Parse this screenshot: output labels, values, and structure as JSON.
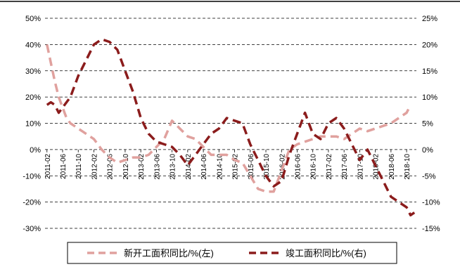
{
  "chart_data": {
    "type": "line",
    "title": "",
    "x": [
      "2011-02",
      "2011-06",
      "2011-10",
      "2012-02",
      "2012-06",
      "2012-10",
      "2013-02",
      "2013-06",
      "2013-10",
      "2014-02",
      "2014-06",
      "2014-10",
      "2015-02",
      "2015-06",
      "2015-10",
      "2016-02",
      "2016-06",
      "2016-10",
      "2017-02",
      "2017-06",
      "2017-10",
      "2018-02",
      "2018-06",
      "2018-10"
    ],
    "y_left": {
      "label": "",
      "ylim": [
        -30,
        50
      ],
      "ticks": [
        "-30%",
        "-20%",
        "-10%",
        "0%",
        "10%",
        "20%",
        "30%",
        "40%",
        "50%"
      ]
    },
    "y_right": {
      "label": "",
      "ylim": [
        -15,
        25
      ],
      "ticks": [
        "-15%",
        "-10%",
        "-5%",
        "0%",
        "5%",
        "10%",
        "15%",
        "20%",
        "25%"
      ]
    },
    "grid": "horizontal dashed",
    "legend_position": "bottom",
    "series": [
      {
        "name": "新开工面积同比/%(左)",
        "axis": "left",
        "color": "#e0a19e",
        "style": "dashed",
        "points": [
          [
            "2011-02",
            40
          ],
          [
            "2011-03",
            33
          ],
          [
            "2011-04",
            26
          ],
          [
            "2011-05",
            20
          ],
          [
            "2011-06",
            16
          ],
          [
            "2011-07",
            12
          ],
          [
            "2011-08",
            10
          ],
          [
            "2011-09",
            9
          ],
          [
            "2011-10",
            8
          ],
          [
            "2011-11",
            7
          ],
          [
            "2011-12",
            6
          ],
          [
            "2012-02",
            4
          ],
          [
            "2012-04",
            0
          ],
          [
            "2012-06",
            -3
          ],
          [
            "2012-08",
            -5
          ],
          [
            "2012-10",
            -4
          ],
          [
            "2012-12",
            -3
          ],
          [
            "2013-02",
            -3
          ],
          [
            "2013-04",
            -2
          ],
          [
            "2013-06",
            1
          ],
          [
            "2013-08",
            4
          ],
          [
            "2013-10",
            11
          ],
          [
            "2013-12",
            8
          ],
          [
            "2014-02",
            5
          ],
          [
            "2014-04",
            4
          ],
          [
            "2014-06",
            1
          ],
          [
            "2014-08",
            -2
          ],
          [
            "2014-10",
            -2
          ],
          [
            "2014-12",
            -2
          ],
          [
            "2015-02",
            -4
          ],
          [
            "2015-04",
            -5
          ],
          [
            "2015-06",
            -10
          ],
          [
            "2015-08",
            -15
          ],
          [
            "2015-10",
            -16
          ],
          [
            "2015-12",
            -16
          ],
          [
            "2016-02",
            -8
          ],
          [
            "2016-04",
            0
          ],
          [
            "2016-06",
            2
          ],
          [
            "2016-08",
            3
          ],
          [
            "2016-10",
            4
          ],
          [
            "2016-12",
            5
          ],
          [
            "2017-02",
            5
          ],
          [
            "2017-04",
            5
          ],
          [
            "2017-06",
            4
          ],
          [
            "2017-08",
            6
          ],
          [
            "2017-10",
            8
          ],
          [
            "2017-12",
            7
          ],
          [
            "2018-02",
            8
          ],
          [
            "2018-04",
            9
          ],
          [
            "2018-06",
            10
          ],
          [
            "2018-08",
            12
          ],
          [
            "2018-10",
            14
          ],
          [
            "2018-11",
            17
          ]
        ]
      },
      {
        "name": "竣工面积同比/%(右)",
        "axis": "right",
        "color": "#8b1c1c",
        "style": "dashed",
        "points": [
          [
            "2011-02",
            8.5
          ],
          [
            "2011-03",
            9
          ],
          [
            "2011-04",
            8.5
          ],
          [
            "2011-05",
            7
          ],
          [
            "2011-06",
            8
          ],
          [
            "2011-08",
            10
          ],
          [
            "2011-10",
            14
          ],
          [
            "2011-12",
            17
          ],
          [
            "2012-02",
            20
          ],
          [
            "2012-04",
            21
          ],
          [
            "2012-06",
            20.5
          ],
          [
            "2012-08",
            19
          ],
          [
            "2012-10",
            15
          ],
          [
            "2012-12",
            11
          ],
          [
            "2013-02",
            6
          ],
          [
            "2013-04",
            3
          ],
          [
            "2013-06",
            1.5
          ],
          [
            "2013-08",
            1
          ],
          [
            "2013-10",
            0.5
          ],
          [
            "2013-12",
            -1
          ],
          [
            "2014-02",
            -3
          ],
          [
            "2014-04",
            -1
          ],
          [
            "2014-06",
            1
          ],
          [
            "2014-08",
            3
          ],
          [
            "2014-10",
            4
          ],
          [
            "2014-12",
            6
          ],
          [
            "2015-02",
            5.5
          ],
          [
            "2015-04",
            5
          ],
          [
            "2015-06",
            1
          ],
          [
            "2015-08",
            -2
          ],
          [
            "2015-10",
            -5
          ],
          [
            "2015-12",
            -7
          ],
          [
            "2016-02",
            -6
          ],
          [
            "2016-04",
            -1
          ],
          [
            "2016-06",
            3
          ],
          [
            "2016-08",
            7
          ],
          [
            "2016-10",
            3
          ],
          [
            "2016-12",
            2
          ],
          [
            "2017-02",
            5
          ],
          [
            "2017-04",
            6
          ],
          [
            "2017-06",
            4
          ],
          [
            "2017-08",
            1
          ],
          [
            "2017-10",
            -2
          ],
          [
            "2017-12",
            0
          ],
          [
            "2018-02",
            -3
          ],
          [
            "2018-04",
            -6
          ],
          [
            "2018-06",
            -9
          ],
          [
            "2018-08",
            -10
          ],
          [
            "2018-10",
            -11
          ],
          [
            "2018-11",
            -12.5
          ],
          [
            "2018-12",
            -12
          ]
        ]
      }
    ]
  }
}
